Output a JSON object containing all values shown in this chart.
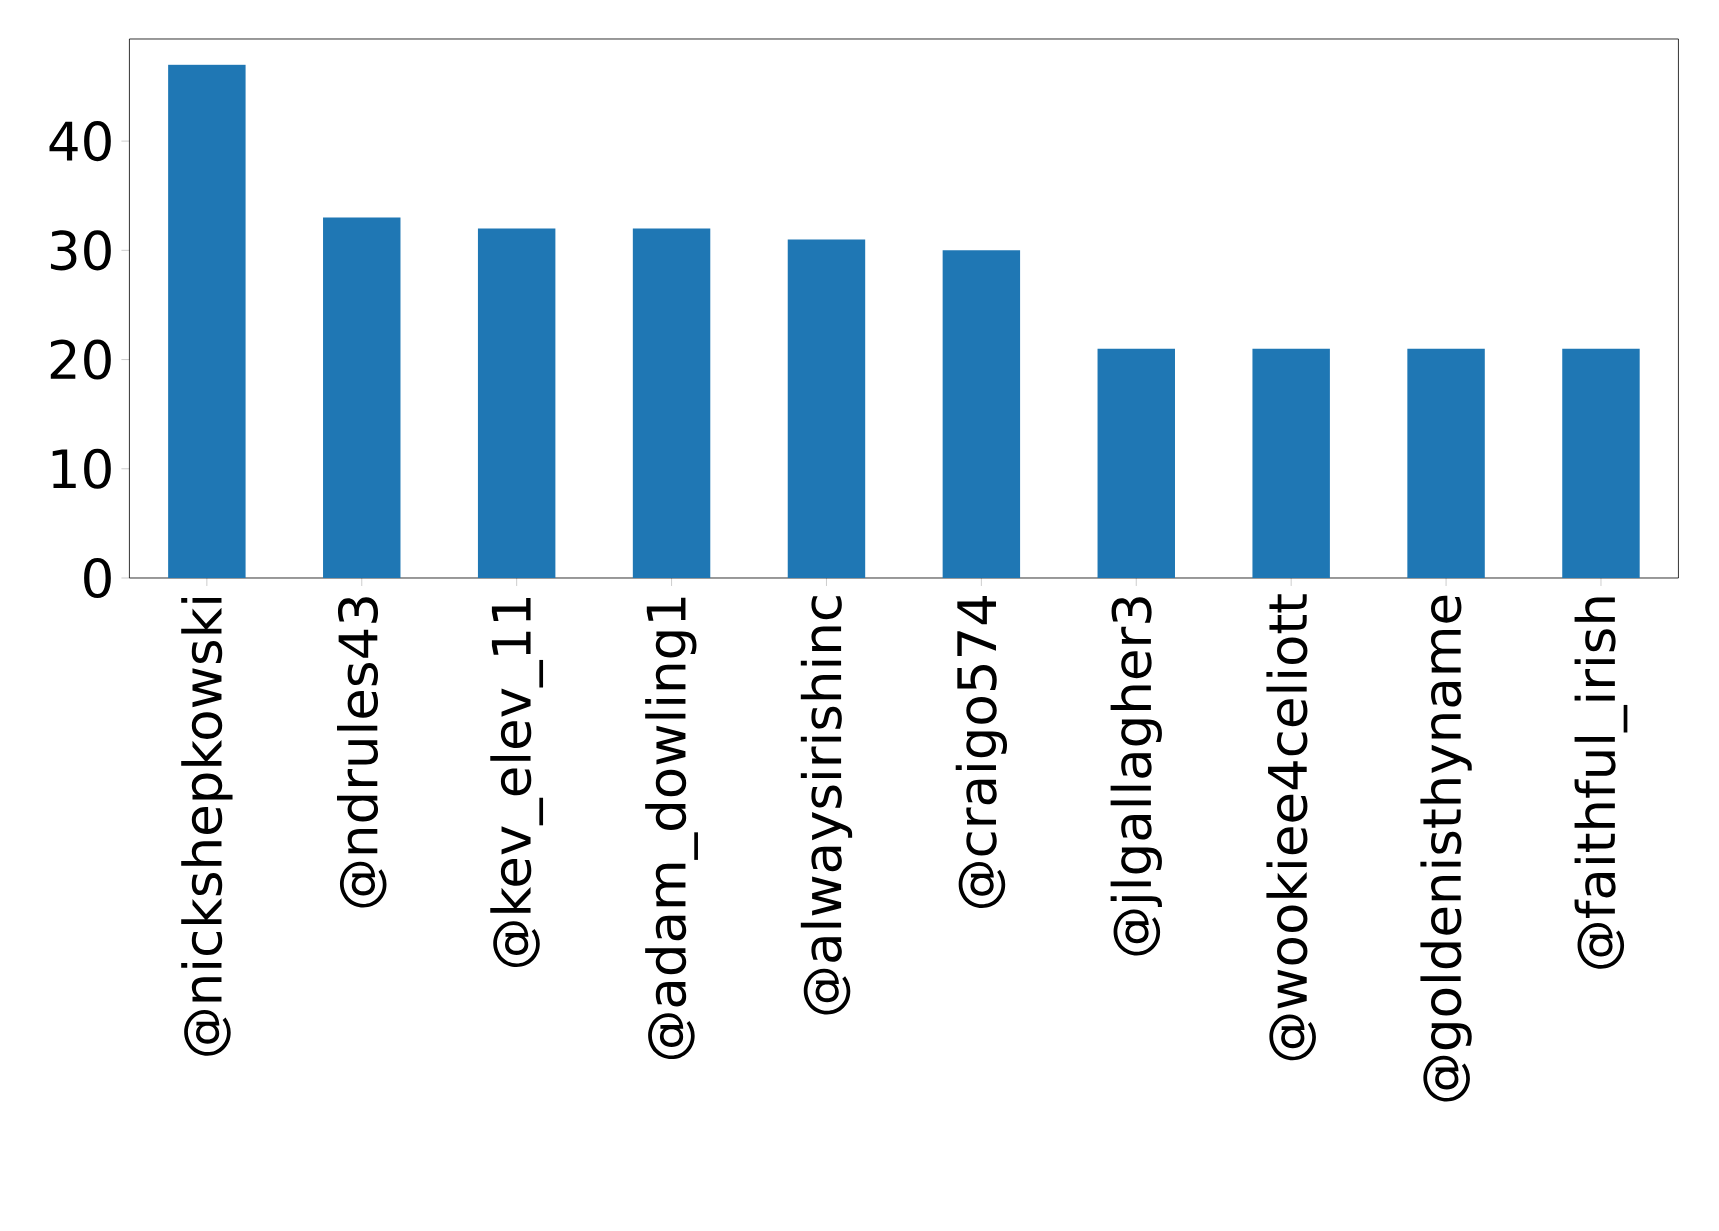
{
  "chart_data": {
    "type": "bar",
    "categories": [
      "@nickshepkowski",
      "@ndrules43",
      "@kev_elev_11",
      "@adam_dowling1",
      "@alwaysirishinc",
      "@craigo574",
      "@jlgallagher3",
      "@wookiee4celiott",
      "@goldenisthyname",
      "@faithful_irish"
    ],
    "values": [
      47,
      33,
      32,
      32,
      31,
      30,
      21,
      21,
      21,
      21
    ],
    "color": "#1f77b4",
    "ylim": [
      0,
      49.35
    ],
    "yticks": [
      0,
      10,
      20,
      30,
      40
    ],
    "grid": false
  }
}
